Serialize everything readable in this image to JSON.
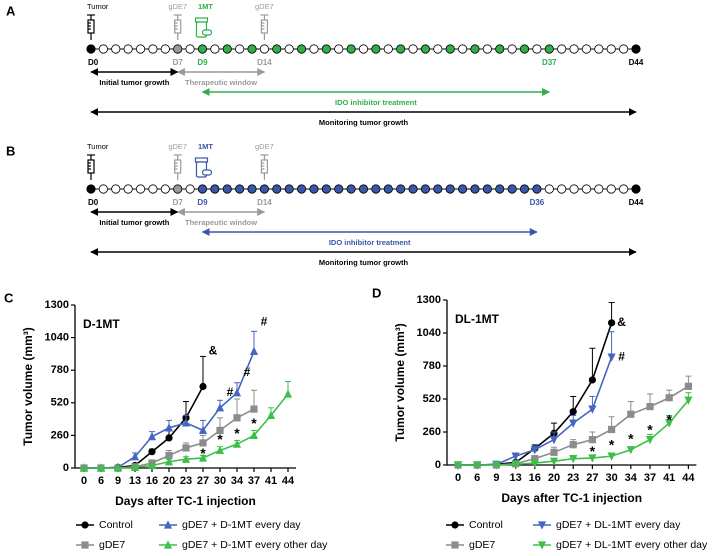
{
  "timelines": [
    {
      "letter": "A",
      "tumor": "Tumor",
      "vaccine_first": "gDE7",
      "drug": "1MT",
      "vaccine_second": "gDE7",
      "days": [
        "D0",
        "D7",
        "D9",
        "D14",
        "D37",
        "D44"
      ],
      "color": "#2fae49",
      "arrows": [
        "Initial tumor growth",
        "Therapeutic window",
        "IDO inhibitor treatment",
        "Monitoring tumor growth"
      ]
    },
    {
      "letter": "B",
      "tumor": "Tumor",
      "vaccine_first": "gDE7",
      "drug": "1MT",
      "vaccine_second": "gDE7",
      "days": [
        "D0",
        "D7",
        "D9",
        "D14",
        "D36",
        "D44"
      ],
      "color": "#3a56a8",
      "arrows": [
        "Initial tumor growth",
        "Therapeutic window",
        "IDO inhibitor treatment",
        "Monitoring tumor growth"
      ]
    }
  ],
  "chart_data": [
    {
      "type": "line",
      "letter": "C",
      "title": "D-1MT",
      "y_label": "Tumor volume (mm³)",
      "x_label": "Days after TC-1 injection",
      "categories": [
        "0",
        "6",
        "9",
        "13",
        "16",
        "20",
        "23",
        "27",
        "30",
        "34",
        "37",
        "41",
        "44"
      ],
      "ylim": [
        0,
        1300
      ],
      "yticks": [
        0,
        260,
        520,
        780,
        1040,
        1300
      ],
      "series": [
        {
          "name": "Control",
          "color": "#000000",
          "marker": "circle",
          "values": [
            0,
            0,
            5,
            20,
            130,
            240,
            400,
            650,
            null,
            null,
            null,
            null,
            null
          ],
          "errors": [
            0,
            0,
            0,
            5,
            20,
            60,
            130,
            240,
            null,
            null,
            null,
            null,
            null
          ]
        },
        {
          "name": "gDE7",
          "color": "#8c8c8c",
          "marker": "square",
          "values": [
            0,
            0,
            0,
            10,
            40,
            100,
            160,
            200,
            300,
            400,
            470,
            null,
            null
          ],
          "errors": [
            0,
            0,
            0,
            5,
            20,
            40,
            40,
            60,
            100,
            150,
            150,
            null,
            null
          ]
        },
        {
          "name": "gDE7 + D-1MT every day",
          "color": "#4466c2",
          "marker": "triangle-up",
          "values": [
            0,
            0,
            5,
            90,
            250,
            320,
            360,
            300,
            480,
            600,
            930,
            null,
            null
          ],
          "errors": [
            0,
            0,
            0,
            30,
            40,
            60,
            60,
            80,
            60,
            80,
            160,
            null,
            null
          ]
        },
        {
          "name": "gDE7 + D-1MT every other day",
          "color": "#3dbf4a",
          "marker": "triangle-up",
          "values": [
            0,
            0,
            0,
            5,
            20,
            50,
            70,
            80,
            140,
            190,
            260,
            420,
            590
          ],
          "errors": [
            0,
            0,
            0,
            5,
            10,
            20,
            20,
            20,
            30,
            30,
            40,
            60,
            100
          ]
        }
      ],
      "annotations": [
        {
          "text": "&",
          "x": "27",
          "y": 930
        },
        {
          "text": "#",
          "x": "30",
          "y": 600
        },
        {
          "text": "#",
          "x": "34",
          "y": 760
        },
        {
          "text": "#",
          "x": "37",
          "y": 1160
        },
        {
          "text": "*",
          "x": "27",
          "y": 110
        },
        {
          "text": "*",
          "x": "30",
          "y": 220
        },
        {
          "text": "*",
          "x": "34",
          "y": 270
        },
        {
          "text": "*",
          "x": "37",
          "y": 350
        }
      ]
    },
    {
      "type": "line",
      "letter": "D",
      "title": "DL-1MT",
      "y_label": "Tumor volume (mm³)",
      "x_label": "Days after TC-1 injection",
      "categories": [
        "0",
        "6",
        "9",
        "13",
        "16",
        "20",
        "23",
        "27",
        "30",
        "34",
        "37",
        "41",
        "44"
      ],
      "ylim": [
        0,
        1300
      ],
      "yticks": [
        0,
        260,
        520,
        780,
        1040,
        1300
      ],
      "series": [
        {
          "name": "Control",
          "color": "#000000",
          "marker": "circle",
          "values": [
            0,
            0,
            5,
            20,
            130,
            250,
            420,
            670,
            1120,
            null,
            null,
            null,
            null
          ],
          "errors": [
            0,
            0,
            0,
            5,
            30,
            80,
            120,
            250,
            160,
            null,
            null,
            null,
            null
          ]
        },
        {
          "name": "gDE7",
          "color": "#8c8c8c",
          "marker": "square",
          "values": [
            0,
            0,
            0,
            10,
            50,
            100,
            160,
            200,
            280,
            400,
            460,
            530,
            620
          ],
          "errors": [
            0,
            0,
            0,
            5,
            20,
            40,
            40,
            60,
            100,
            100,
            100,
            60,
            80
          ]
        },
        {
          "name": "gDE7 + DL-1MT every day",
          "color": "#4466c2",
          "marker": "triangle-down",
          "values": [
            0,
            0,
            5,
            70,
            120,
            200,
            330,
            440,
            850,
            null,
            null,
            null,
            null
          ],
          "errors": [
            0,
            0,
            0,
            20,
            40,
            60,
            60,
            100,
            200,
            null,
            null,
            null,
            null
          ]
        },
        {
          "name": "gDE7 + DL-1MT every other day",
          "color": "#3dbf4a",
          "marker": "triangle-down",
          "values": [
            0,
            0,
            0,
            5,
            15,
            30,
            50,
            55,
            70,
            120,
            200,
            330,
            510
          ],
          "errors": [
            0,
            0,
            0,
            3,
            5,
            10,
            10,
            15,
            15,
            20,
            40,
            60,
            60
          ]
        }
      ],
      "annotations": [
        {
          "text": "&",
          "x": "30",
          "y": 1120
        },
        {
          "text": "#",
          "x": "30",
          "y": 850
        },
        {
          "text": "*",
          "x": "27",
          "y": 100
        },
        {
          "text": "*",
          "x": "30",
          "y": 150
        },
        {
          "text": "*",
          "x": "34",
          "y": 200
        },
        {
          "text": "*",
          "x": "37",
          "y": 270
        },
        {
          "text": "*",
          "x": "41",
          "y": 350
        }
      ]
    }
  ]
}
